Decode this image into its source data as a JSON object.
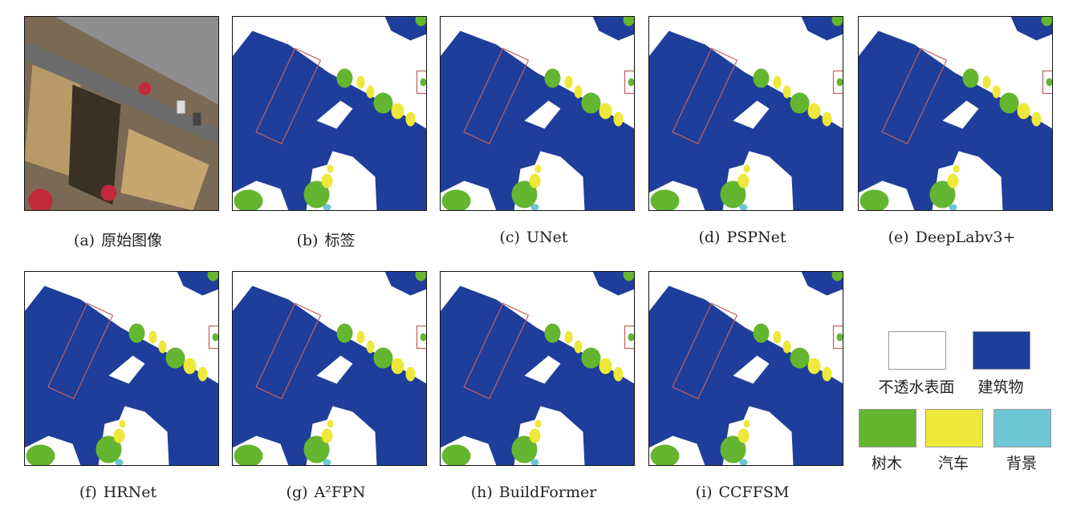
{
  "panels": [
    {
      "letter": "(a)",
      "name": "原始图像"
    },
    {
      "letter": "(b)",
      "name": "标签"
    },
    {
      "letter": "(c)",
      "name": "UNet"
    },
    {
      "letter": "(d)",
      "name": "PSPNet"
    },
    {
      "letter": "(e)",
      "name": "DeepLabv3+"
    },
    {
      "letter": "(f)",
      "name": "HRNet"
    },
    {
      "letter": "(g)",
      "name": "A²FPN"
    },
    {
      "letter": "(h)",
      "name": "BuildFormer"
    },
    {
      "letter": "(i)",
      "name": "CCFFSM"
    }
  ],
  "legend": [
    {
      "label": "不透水表面",
      "color": "#ffffff"
    },
    {
      "label": "建筑物",
      "color": "#1f3e9b"
    },
    {
      "label": "树木",
      "color": "#64b52f"
    },
    {
      "label": "汽车",
      "color": "#ede83a"
    },
    {
      "label": "背景",
      "color": "#6cc6d3"
    }
  ]
}
